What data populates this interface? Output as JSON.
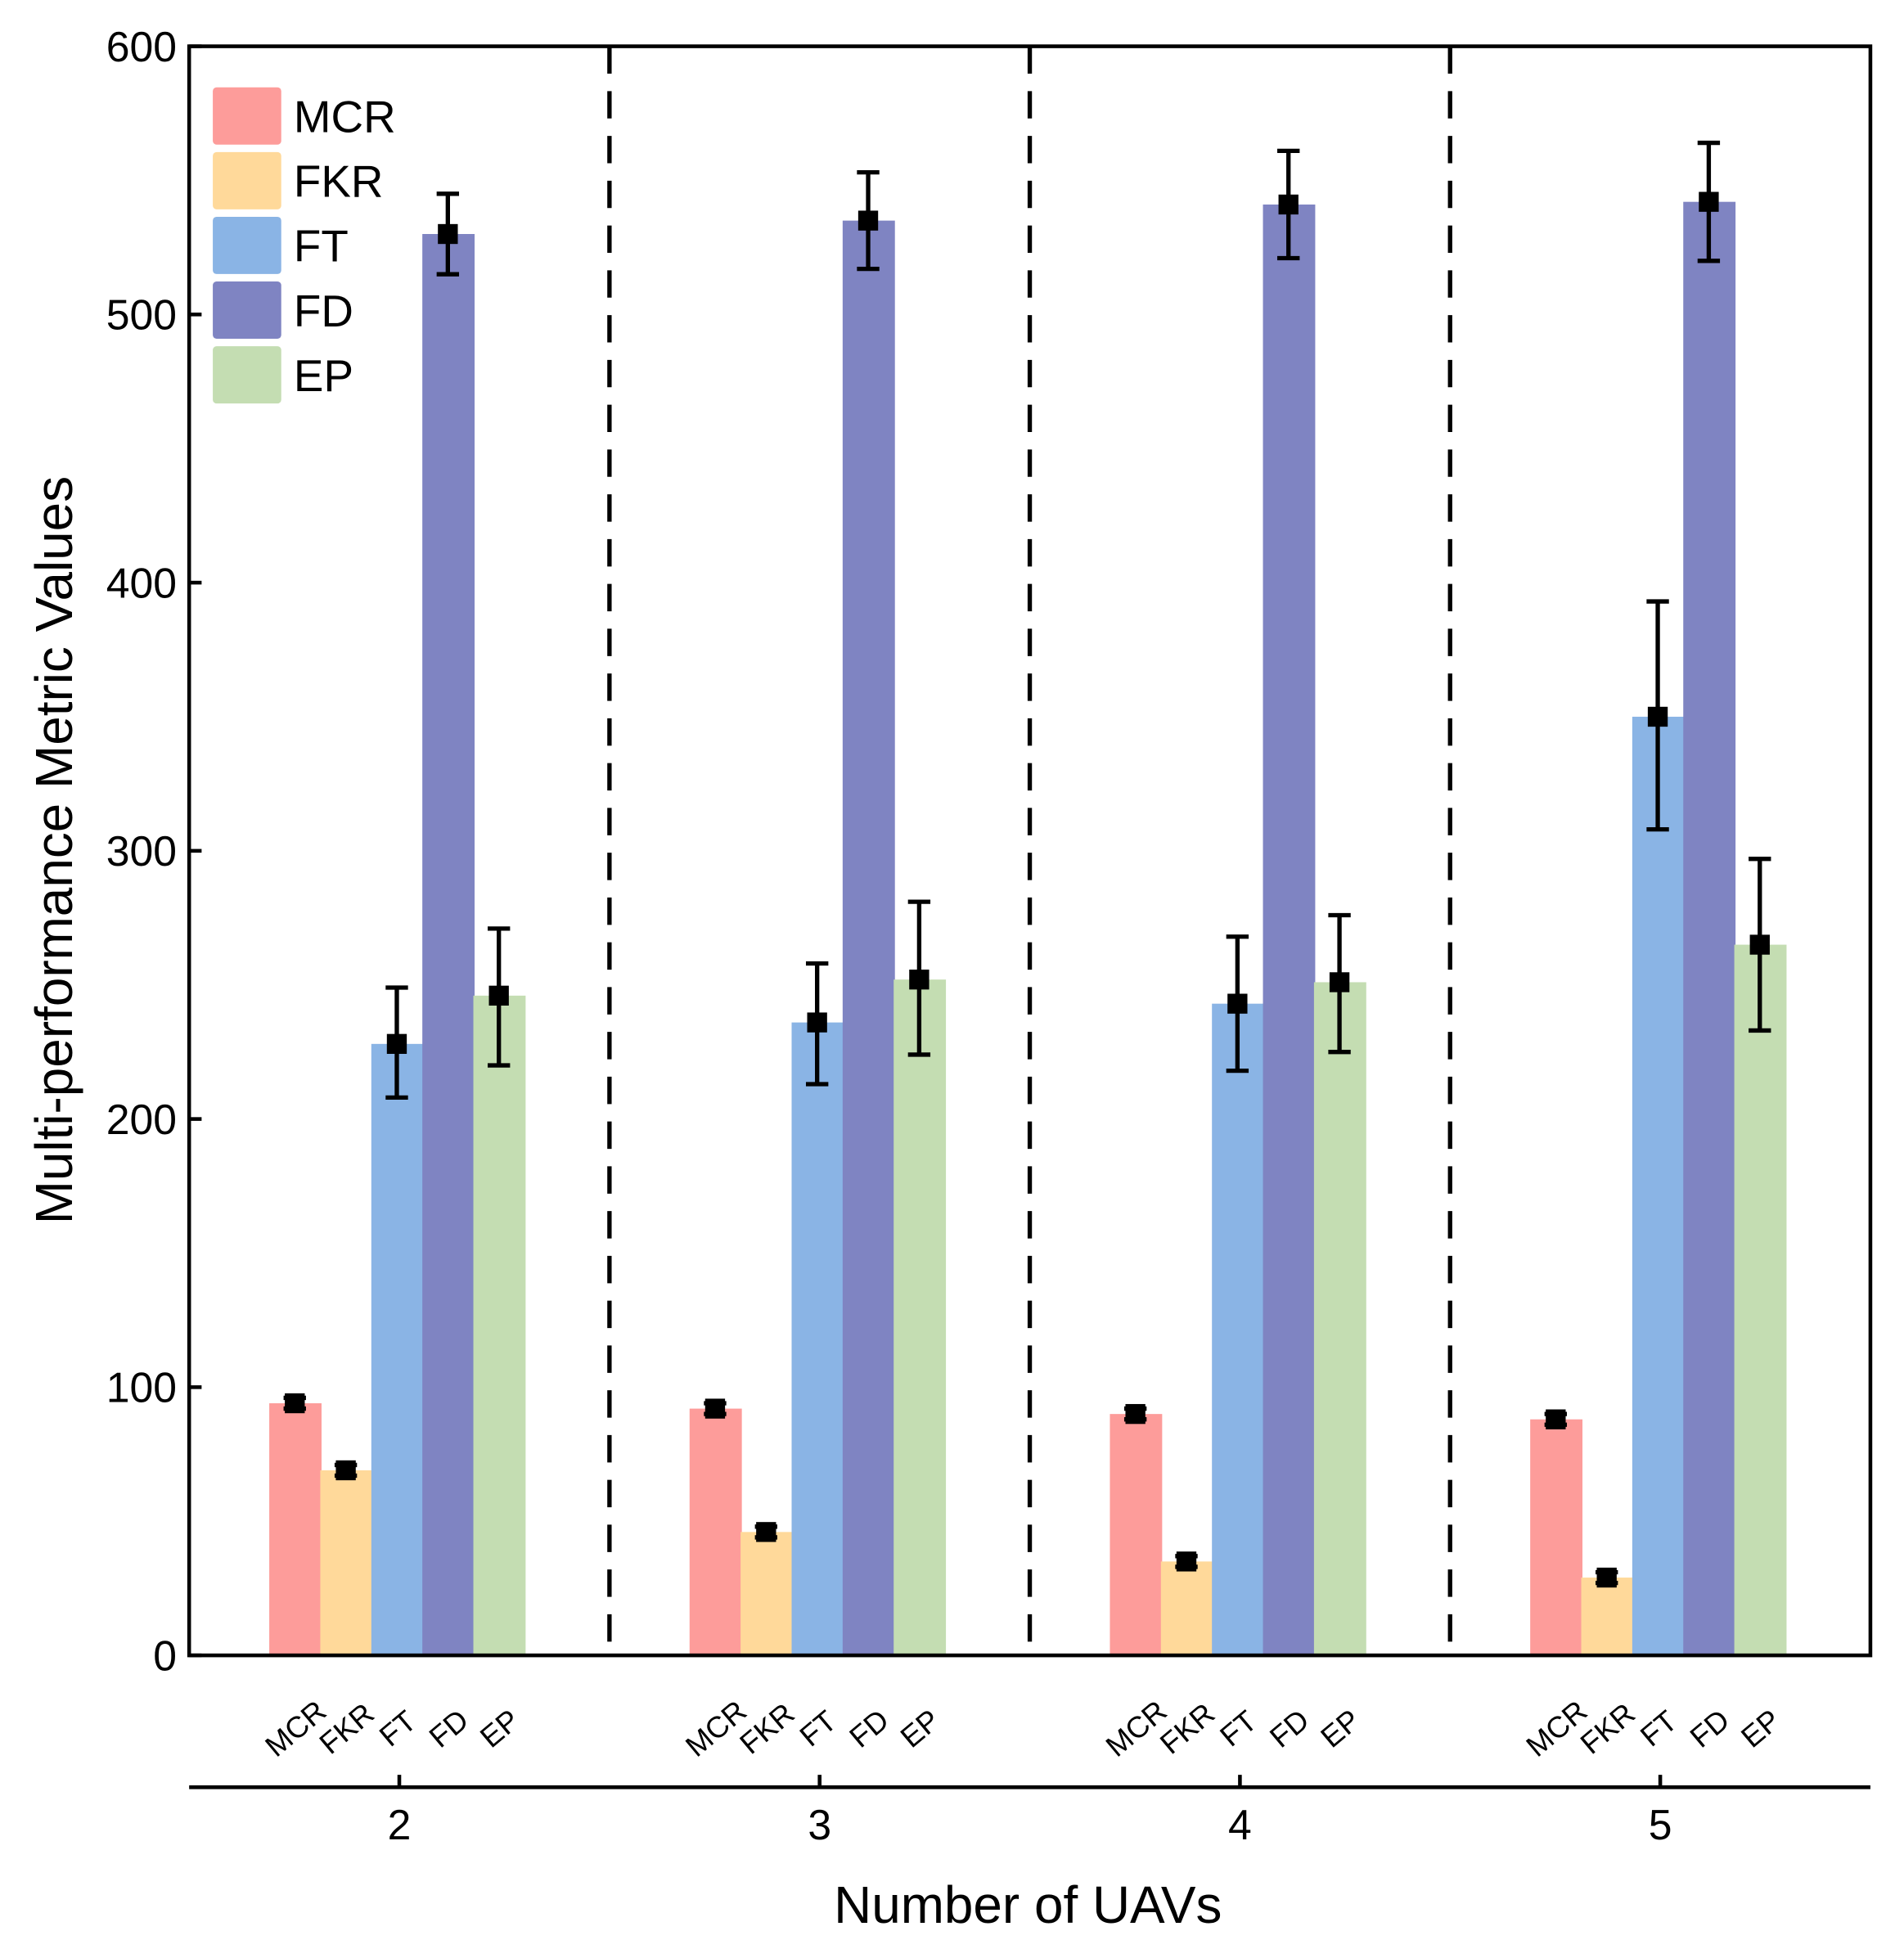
{
  "chart_data": {
    "type": "bar",
    "title": "",
    "xlabel": "Number of UAVs",
    "ylabel": "Multi-performance Metric Values",
    "ylim": [
      0,
      600
    ],
    "yticks": [
      0,
      100,
      200,
      300,
      400,
      500,
      600
    ],
    "categories": [
      "2",
      "3",
      "4",
      "5"
    ],
    "legend_position": "top-left",
    "grid": false,
    "series": [
      {
        "name": "MCR",
        "color": "#fd9c9a",
        "values": [
          94,
          92,
          90,
          88
        ],
        "err_low": [
          92,
          90,
          88,
          86
        ],
        "err_high": [
          96,
          94,
          92,
          90
        ]
      },
      {
        "name": "FKR",
        "color": "#ffd99a",
        "values": [
          69,
          46,
          35,
          29
        ],
        "err_low": [
          67,
          44,
          33,
          27
        ],
        "err_high": [
          71,
          48,
          37,
          31
        ]
      },
      {
        "name": "FT",
        "color": "#8ab4e5",
        "values": [
          228,
          236,
          243,
          350
        ],
        "err_low": [
          208,
          213,
          218,
          308
        ],
        "err_high": [
          249,
          258,
          268,
          393
        ]
      },
      {
        "name": "FD",
        "color": "#7f84c2",
        "values": [
          530,
          535,
          541,
          542
        ],
        "err_low": [
          515,
          517,
          521,
          520
        ],
        "err_high": [
          545,
          553,
          561,
          564
        ]
      },
      {
        "name": "EP",
        "color": "#c4ddb2",
        "values": [
          246,
          252,
          251,
          265
        ],
        "err_low": [
          220,
          224,
          225,
          233
        ],
        "err_high": [
          271,
          281,
          276,
          297
        ]
      }
    ]
  }
}
